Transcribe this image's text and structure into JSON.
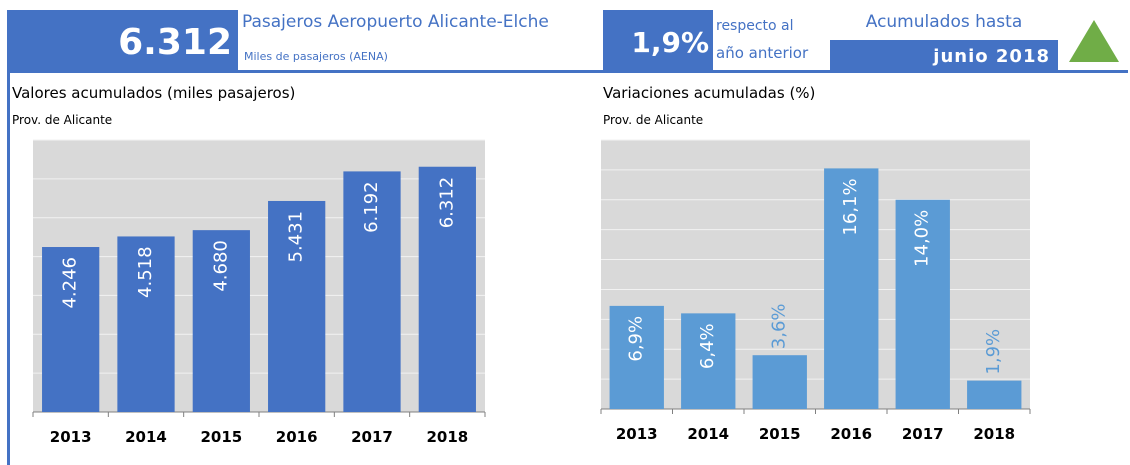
{
  "header": {
    "value": "6.312",
    "title": "Pasajeros Aeropuerto Alicante-Elche",
    "subtitle": "Miles de pasajeros (AENA)",
    "change": "1,9%",
    "change_text": [
      "respecto al",
      "año anterior"
    ],
    "period_label": "Acumulados hasta",
    "period": "junio 2018"
  },
  "chart_data": [
    {
      "type": "bar",
      "title": "Valores acumulados (miles pasajeros)",
      "subtitle": "Prov. de Alicante",
      "categories": [
        "2013",
        "2014",
        "2015",
        "2016",
        "2017",
        "2018"
      ],
      "values": [
        4246,
        4518,
        4680,
        5431,
        6192,
        6312
      ],
      "value_labels": [
        "4.246",
        "4.518",
        "4.680",
        "5.431",
        "6.192",
        "6.312"
      ],
      "color": "#4472c4",
      "ylim": [
        0,
        7000
      ],
      "yticks": [
        0,
        1000,
        2000,
        3000,
        4000,
        5000,
        6000,
        7000
      ],
      "grid": true
    },
    {
      "type": "bar",
      "title": "Variaciones acumuladas (%)",
      "subtitle": "Prov. de Alicante",
      "categories": [
        "2013",
        "2014",
        "2015",
        "2016",
        "2017",
        "2018"
      ],
      "values": [
        6.9,
        6.4,
        3.6,
        16.1,
        14.0,
        1.9
      ],
      "value_labels": [
        "6,9%",
        "6,4%",
        "3,6%",
        "16,1%",
        "14,0%",
        "1,9%"
      ],
      "color": "#5b9bd5",
      "ylim": [
        0,
        18
      ],
      "yticks": [
        0,
        2,
        4,
        6,
        8,
        10,
        12,
        14,
        16,
        18
      ],
      "grid": true
    }
  ]
}
